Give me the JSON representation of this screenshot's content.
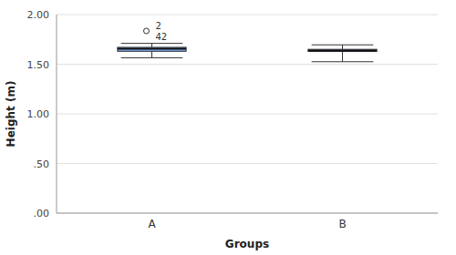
{
  "chart_data": {
    "type": "box",
    "categories": [
      "A",
      "B"
    ],
    "boxes": [
      {
        "q1": 1.63,
        "median": 1.655,
        "q3": 1.67,
        "whisker_low": 1.565,
        "whisker_high": 1.71,
        "outliers": [
          1.835
        ],
        "outlier_labels": [
          "2",
          "42"
        ]
      },
      {
        "q1": 1.628,
        "median": 1.638,
        "q3": 1.65,
        "whisker_low": 1.525,
        "whisker_high": 1.695,
        "outliers": []
      }
    ],
    "color": "#7aabec",
    "x_label": "Groups",
    "y_label": "Height (m)",
    "ylim": [
      0.0,
      2.0
    ],
    "yticks": [
      {
        "value": 0.0,
        "label": ".00"
      },
      {
        "value": 0.5,
        "label": ".50"
      },
      {
        "value": 1.0,
        "label": "1.00"
      },
      {
        "value": 1.5,
        "label": "1.50"
      },
      {
        "value": 2.0,
        "label": "2.00"
      }
    ],
    "grid": true
  }
}
